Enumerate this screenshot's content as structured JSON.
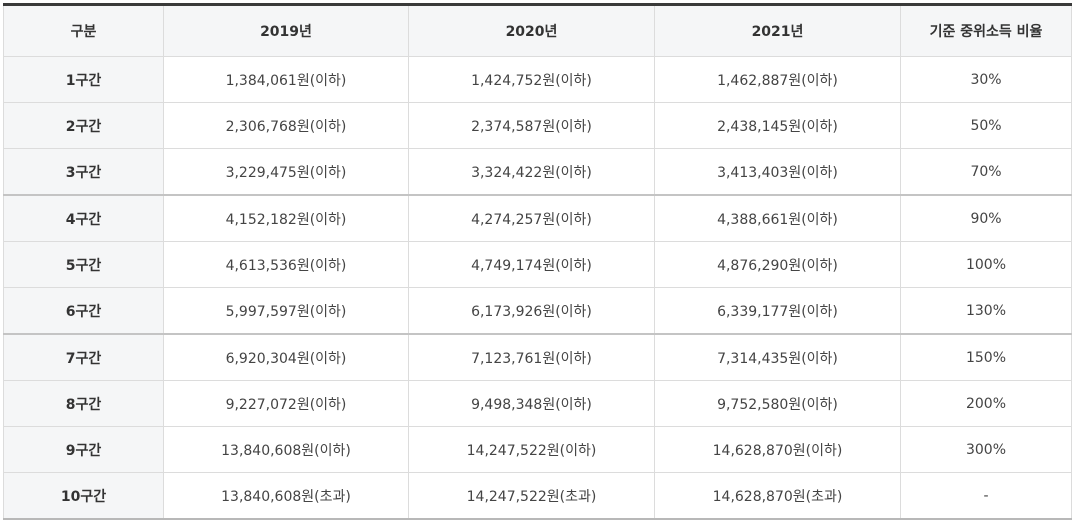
{
  "table": {
    "headers": [
      "구분",
      "2019년",
      "2020년",
      "2021년",
      "기준 중위소득 비율"
    ],
    "rows": [
      {
        "label": "1구간",
        "y2019": "1,384,061원(이하)",
        "y2020": "1,424,752원(이하)",
        "y2021": "1,462,887원(이하)",
        "ratio": "30%"
      },
      {
        "label": "2구간",
        "y2019": "2,306,768원(이하)",
        "y2020": "2,374,587원(이하)",
        "y2021": "2,438,145원(이하)",
        "ratio": "50%"
      },
      {
        "label": "3구간",
        "y2019": "3,229,475원(이하)",
        "y2020": "3,324,422원(이하)",
        "y2021": "3,413,403원(이하)",
        "ratio": "70%"
      },
      {
        "label": "4구간",
        "y2019": "4,152,182원(이하)",
        "y2020": "4,274,257원(이하)",
        "y2021": "4,388,661원(이하)",
        "ratio": "90%"
      },
      {
        "label": "5구간",
        "y2019": "4,613,536원(이하)",
        "y2020": "4,749,174원(이하)",
        "y2021": "4,876,290원(이하)",
        "ratio": "100%"
      },
      {
        "label": "6구간",
        "y2019": "5,997,597원(이하)",
        "y2020": "6,173,926원(이하)",
        "y2021": "6,339,177원(이하)",
        "ratio": "130%"
      },
      {
        "label": "7구간",
        "y2019": "6,920,304원(이하)",
        "y2020": "7,123,761원(이하)",
        "y2021": "7,314,435원(이하)",
        "ratio": "150%"
      },
      {
        "label": "8구간",
        "y2019": "9,227,072원(이하)",
        "y2020": "9,498,348원(이하)",
        "y2021": "9,752,580원(이하)",
        "ratio": "200%"
      },
      {
        "label": "9구간",
        "y2019": "13,840,608원(이하)",
        "y2020": "14,247,522원(이하)",
        "y2021": "14,628,870원(이하)",
        "ratio": "300%"
      },
      {
        "label": "10구간",
        "y2019": "13,840,608원(초과)",
        "y2020": "14,247,522원(초과)",
        "y2021": "14,628,870원(초과)",
        "ratio": "-"
      }
    ]
  }
}
